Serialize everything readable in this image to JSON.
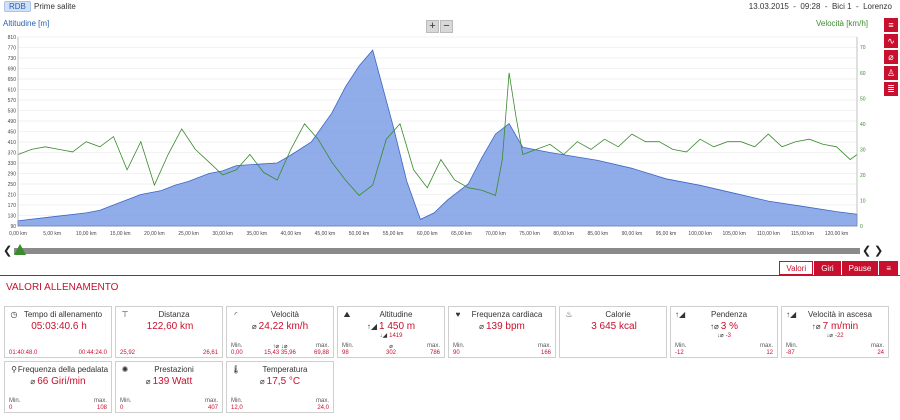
{
  "header": {
    "badge": "RDB",
    "workout_name": "Prime salite",
    "meta": "13.03.2015  -  09:28  -  Bici 1  -  Lorenzo"
  },
  "chart": {
    "left_axis_label": "Altitudine [m]",
    "right_axis_label": "Velocità [km/h]",
    "zoom_in": "+",
    "zoom_out": "−"
  },
  "chart_data": {
    "type": "area",
    "x_unit": "km",
    "xlim": [
      0,
      123
    ],
    "x_ticks": [
      "0,00 km",
      "5,00 km",
      "10,00 km",
      "15,00 km",
      "20,00 km",
      "25,00 km",
      "30,00 km",
      "35,00 km",
      "40,00 km",
      "45,00 km",
      "50,00 km",
      "55,00 km",
      "60,00 km",
      "65,00 km",
      "70,00 km",
      "75,00 km",
      "80,00 km",
      "85,00 km",
      "90,00 km",
      "95,00 km",
      "100,00 km",
      "105,00 km",
      "110,00 km",
      "115,00 km",
      "120,00 km"
    ],
    "y_left_ticks": [
      "810",
      "770",
      "730",
      "690",
      "650",
      "610",
      "570",
      "530",
      "490",
      "450",
      "410",
      "370",
      "330",
      "290",
      "250",
      "210",
      "170",
      "130",
      "90"
    ],
    "y_left_lim": [
      90,
      810
    ],
    "y_right_ticks": [
      "70",
      "60",
      "50",
      "40",
      "30",
      "20",
      "10",
      "0"
    ],
    "y_right_lim": [
      0,
      74
    ],
    "series": [
      {
        "name": "Altitudine [m]",
        "axis": "left",
        "color": "#7d9fe6",
        "x": [
          0,
          5,
          10,
          12,
          15,
          18,
          21,
          23,
          25,
          28,
          30,
          32,
          35,
          38,
          40,
          43,
          46,
          48,
          50,
          52,
          55,
          57,
          59,
          61,
          63,
          66,
          68,
          70,
          72,
          74,
          78,
          85,
          90,
          95,
          100,
          105,
          110,
          115,
          120,
          123
        ],
        "y": [
          110,
          125,
          140,
          150,
          180,
          210,
          225,
          245,
          260,
          290,
          300,
          320,
          325,
          330,
          360,
          410,
          520,
          620,
          700,
          760,
          470,
          260,
          115,
          140,
          190,
          250,
          350,
          440,
          480,
          390,
          370,
          340,
          310,
          270,
          245,
          215,
          185,
          165,
          145,
          135
        ]
      },
      {
        "name": "Velocità [km/h]",
        "axis": "right",
        "color": "#3a8a2e",
        "x": [
          0,
          2,
          4,
          6,
          8,
          10,
          12,
          14,
          16,
          18,
          20,
          22,
          24,
          26,
          28,
          30,
          32,
          34,
          36,
          38,
          40,
          42,
          44,
          46,
          48,
          50,
          52,
          54,
          56,
          58,
          60,
          62,
          64,
          66,
          68,
          70,
          71,
          72,
          73,
          74,
          76,
          78,
          80,
          82,
          84,
          86,
          88,
          90,
          92,
          94,
          96,
          98,
          100,
          102,
          104,
          106,
          108,
          110,
          112,
          114,
          116,
          118,
          120,
          122,
          123
        ],
        "y": [
          28,
          30,
          31,
          30,
          29,
          33,
          31,
          35,
          22,
          33,
          16,
          28,
          38,
          30,
          25,
          20,
          22,
          28,
          21,
          18,
          30,
          40,
          34,
          25,
          18,
          12,
          16,
          34,
          40,
          22,
          15,
          26,
          18,
          15,
          14,
          12,
          26,
          60,
          43,
          28,
          30,
          32,
          28,
          33,
          30,
          34,
          31,
          36,
          33,
          33,
          30,
          29,
          34,
          31,
          33,
          33,
          31,
          36,
          31,
          33,
          34,
          32,
          31,
          26,
          28
        ]
      }
    ]
  },
  "sidebar": {
    "buttons": [
      {
        "label": "≡",
        "icon": "list-icon"
      },
      {
        "label": "∿",
        "icon": "line-chart-icon"
      },
      {
        "label": "⌀",
        "icon": "diameter-icon"
      },
      {
        "label": "♙",
        "icon": "person-icon"
      },
      {
        "label": "≣",
        "icon": "bar-chart-icon"
      }
    ]
  },
  "tabs": {
    "valori": "Valori",
    "giri": "Giri",
    "pause": "Pause"
  },
  "section": {
    "title": "VALORI ALLENAMENTO"
  },
  "cards": [
    {
      "icon": "◷",
      "title": "Tempo di allenamento",
      "value": "05:03:40.6 h",
      "pre": "",
      "min_label": "",
      "min": "01:40:48.0",
      "max_label": "",
      "max": "00:44:24.0",
      "mid_label": "",
      "mid": "",
      "sub": "",
      "sub_pre": ""
    },
    {
      "icon": "⊤",
      "title": "Distanza",
      "value": "122,60 km",
      "pre": "",
      "min_label": "",
      "min": "25,92",
      "max_label": "",
      "max": "26,61",
      "mid_label": "",
      "mid": "",
      "sub": "",
      "sub_pre": ""
    },
    {
      "icon": "◜",
      "title": "Velocità",
      "value": "24,22 km/h",
      "pre": "⌀",
      "min_label": "Min.",
      "min": "0,00",
      "max_label": "max.",
      "max": "69,88",
      "mid_label": "↑⌀  ↓⌀",
      "mid": "15,43  35,96",
      "sub": "",
      "sub_pre": ""
    },
    {
      "icon": "⛰",
      "title": "Altitudine",
      "value": "1 450 m",
      "pre": "↑◢",
      "min_label": "Min.",
      "min": "98",
      "max_label": "max.",
      "max": "786",
      "mid_label": "⌀",
      "mid": "302",
      "sub": "1419",
      "sub_pre": "↓◢"
    },
    {
      "icon": "♥",
      "title": "Frequenza cardiaca",
      "value": "139 bpm",
      "pre": "⌀",
      "min_label": "Min.",
      "min": "90",
      "max_label": "max.",
      "max": "166",
      "mid_label": "",
      "mid": "",
      "sub": "",
      "sub_pre": ""
    },
    {
      "icon": "♨",
      "title": "Calorie",
      "value": "3 645 kcal",
      "pre": "",
      "min_label": "",
      "min": "",
      "max_label": "",
      "max": "",
      "mid_label": "",
      "mid": "",
      "sub": "",
      "sub_pre": ""
    },
    {
      "icon": "↑◢",
      "title": "Pendenza",
      "value": "3 %",
      "pre": "↑⌀",
      "min_label": "Min.",
      "min": "-12",
      "max_label": "max.",
      "max": "12",
      "mid_label": "",
      "mid": "",
      "sub": "-3",
      "sub_pre": "↓⌀"
    },
    {
      "icon": "↑◢",
      "title": "Velocità in ascesa",
      "value": "7 m/min",
      "pre": "↑⌀",
      "min_label": "Min.",
      "min": "-87",
      "max_label": "max.",
      "max": "24",
      "mid_label": "",
      "mid": "",
      "sub": "-22",
      "sub_pre": "↓⌀"
    },
    {
      "icon": "⚲",
      "title": "Frequenza della pedalata",
      "value": "66 Giri/min",
      "pre": "⌀",
      "min_label": "Min.",
      "min": "0",
      "max_label": "max.",
      "max": "108",
      "mid_label": "",
      "mid": "",
      "sub": "",
      "sub_pre": ""
    },
    {
      "icon": "✺",
      "title": "Prestazioni",
      "value": "139 Watt",
      "pre": "⌀",
      "min_label": "Min.",
      "min": "0",
      "max_label": "max.",
      "max": "407",
      "mid_label": "",
      "mid": "",
      "sub": "",
      "sub_pre": ""
    },
    {
      "icon": "🌡",
      "title": "Temperatura",
      "value": "17,5 °C",
      "pre": "⌀",
      "min_label": "Min.",
      "min": "12,0",
      "max_label": "max.",
      "max": "24,0",
      "mid_label": "",
      "mid": "",
      "sub": "",
      "sub_pre": ""
    }
  ]
}
